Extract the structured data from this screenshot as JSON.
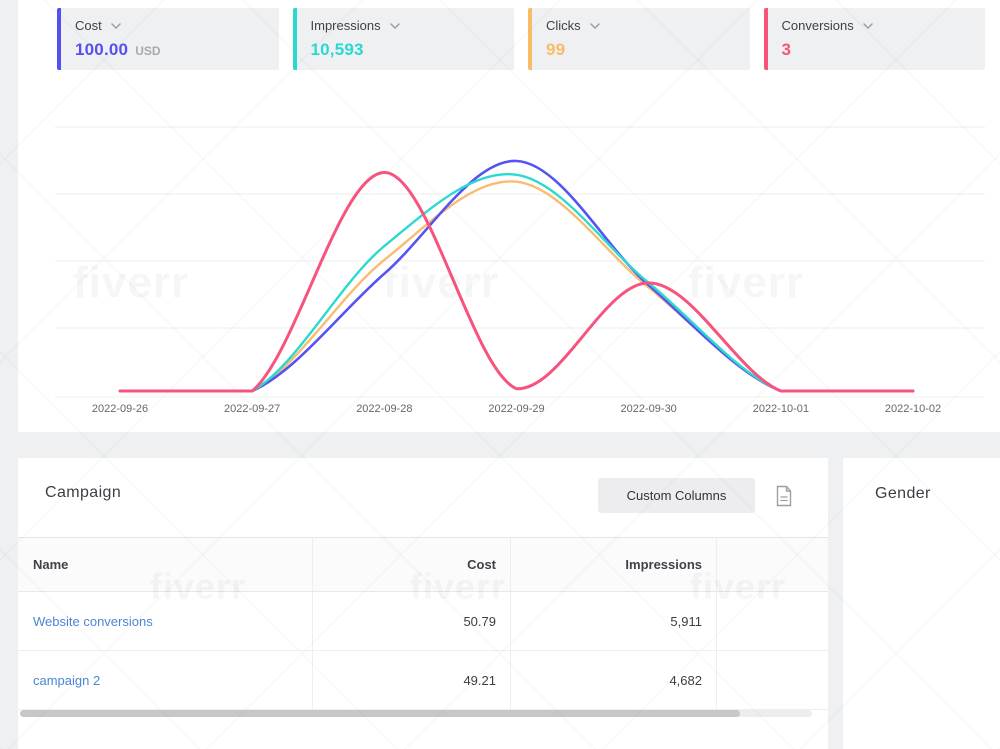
{
  "metrics": [
    {
      "label": "Cost",
      "value": "100.00",
      "unit": "USD",
      "accent": "#554ff1"
    },
    {
      "label": "Impressions",
      "value": "10,593",
      "unit": "",
      "accent": "#2bd8d2"
    },
    {
      "label": "Clicks",
      "value": "99",
      "unit": "",
      "accent": "#f9bb66"
    },
    {
      "label": "Conversions",
      "value": "3",
      "unit": "",
      "accent": "#f75479"
    }
  ],
  "icons": {
    "metric_dropdown": "chevron-down",
    "export": "document-page"
  },
  "chart_data": {
    "type": "line",
    "x": [
      "2022-09-26",
      "2022-09-27",
      "2022-09-28",
      "2022-09-29",
      "2022-09-30",
      "2022-10-01",
      "2022-10-02"
    ],
    "series": [
      {
        "name": "Cost",
        "color": "#5553f2",
        "values": [
          0,
          0,
          51,
          100,
          46,
          0,
          0
        ]
      },
      {
        "name": "Impressions",
        "color": "#2cd9cf",
        "values": [
          0,
          0,
          63,
          94,
          47,
          0,
          0
        ]
      },
      {
        "name": "Clicks",
        "color": "#f8bc72",
        "values": [
          0,
          0,
          57,
          91,
          45,
          0,
          0
        ]
      },
      {
        "name": "Conversions",
        "color": "#f7537d",
        "values": [
          0,
          0,
          95,
          1,
          47,
          0,
          0
        ]
      }
    ],
    "ylim": [
      0,
      100
    ],
    "grid": "horizontal",
    "legend": "none",
    "smoothing": "spline",
    "xlabel": "",
    "ylabel": ""
  },
  "campaign": {
    "title": "Campaign",
    "custom_columns_label": "Custom Columns",
    "table": {
      "columns": [
        "Name",
        "Cost",
        "Impressions"
      ],
      "rows": [
        {
          "name": "Website conversions",
          "cost": "50.79",
          "impressions": "5,911"
        },
        {
          "name": "campaign 2",
          "cost": "49.21",
          "impressions": "4,682"
        }
      ]
    },
    "link_color": "#4b86d5"
  },
  "gender": {
    "title": "Gender"
  },
  "watermark": {
    "text": "fiverr"
  }
}
